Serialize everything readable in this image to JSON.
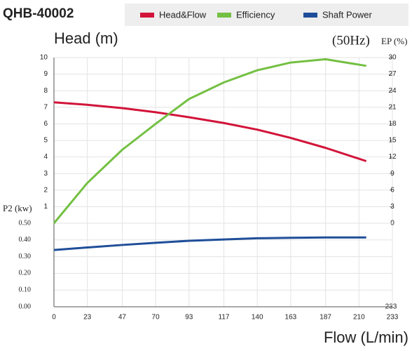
{
  "chart_data": {
    "type": "line",
    "title": "QHB-40002",
    "ylabel": "Head (m)",
    "y2label": "EP (%)",
    "y3label": "P2 (kw)",
    "annotation": "(50Hz)",
    "xlabel": "Flow (L/min)",
    "corner_label": "233",
    "x": [
      0,
      23,
      47,
      70,
      93,
      117,
      140,
      163,
      187,
      215
    ],
    "xlim": [
      0,
      233
    ],
    "xticks": [
      0,
      23,
      47,
      70,
      93,
      117,
      140,
      163,
      187,
      210,
      233
    ],
    "ylim": [
      0,
      10
    ],
    "yticks": [
      1,
      2,
      3,
      4,
      5,
      6,
      7,
      8,
      9,
      10
    ],
    "y2lim": [
      0,
      30
    ],
    "y2ticks": [
      0,
      3,
      6,
      9,
      12,
      15,
      18,
      21,
      24,
      27,
      30
    ],
    "y3lim": [
      0,
      0.5
    ],
    "y3ticks": [
      {
        "value": 0,
        "label": "0.00"
      },
      {
        "value": 0.1,
        "label": "0.10"
      },
      {
        "value": 0.2,
        "label": "0.20"
      },
      {
        "value": 0.3,
        "label": "0.30"
      },
      {
        "value": 0.4,
        "label": "0.40"
      },
      {
        "value": 0.5,
        "label": "0.50"
      }
    ],
    "grid": true,
    "series": [
      {
        "name": "Head&Flow",
        "color": "#d2143a",
        "values": [
          7.3,
          7.15,
          6.95,
          6.7,
          6.4,
          6.05,
          5.65,
          5.15,
          4.55,
          3.75
        ]
      },
      {
        "name": "Efficiency",
        "color": "#74c043",
        "axis": "y2",
        "values": [
          0,
          7.3,
          13.3,
          18,
          22.5,
          25.5,
          27.7,
          29.1,
          29.7,
          28.5
        ]
      },
      {
        "name": "Shaft Power",
        "color": "#1f4e99",
        "axis": "y3",
        "values": [
          0.34,
          0.355,
          0.37,
          0.383,
          0.395,
          0.403,
          0.41,
          0.413,
          0.415,
          0.415
        ]
      }
    ]
  }
}
